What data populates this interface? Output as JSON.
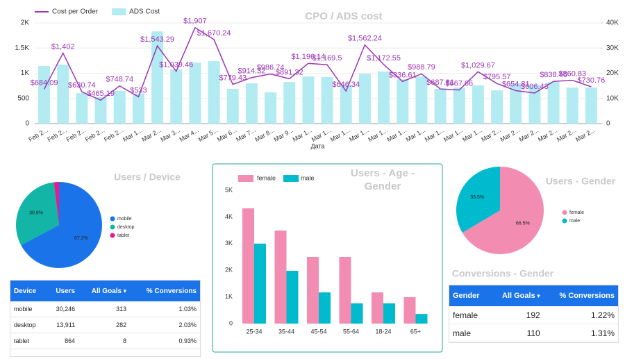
{
  "chart_data": [
    {
      "type": "combo",
      "title": "CPO / ADS cost",
      "x_label": "Дата",
      "grid": true,
      "categories": [
        "Feb 2...",
        "Feb 2...",
        "Feb 2...",
        "Feb 2...",
        "Feb 2...",
        "Mar 1...",
        "Mar 2...",
        "Mar 3...",
        "Mar 4...",
        "Mar 5...",
        "Mar 6...",
        "Mar 7...",
        "Mar 8...",
        "Mar 9...",
        "Mar 1...",
        "Mar 1...",
        "Mar 1...",
        "Mar 1...",
        "Mar 1...",
        "Mar 1...",
        "Mar 1...",
        "Mar 1...",
        "Mar 1...",
        "Mar 1...",
        "Mar 2...",
        "Mar 2...",
        "Mar 2...",
        "Mar 2...",
        "Mar 2...",
        "Mar 2..."
      ],
      "series": [
        {
          "name": "Cost per Order",
          "type": "line",
          "color": "#9c35b5",
          "values": [
            684.09,
            1402,
            630.74,
            465.19,
            748.74,
            533,
            1543.29,
            1039.46,
            1907,
            1670.24,
            779.43,
            914.32,
            986.74,
            891.32,
            1196.14,
            1169.5,
            646.34,
            1562.24,
            1172.55,
            836.61,
            988.79,
            687.81,
            667.66,
            1029.67,
            795.57,
            654.81,
            606.43,
            838.46,
            860.83,
            730.76
          ],
          "value_labels": [
            "$684.09",
            "$1,402",
            "$630.74",
            "$465.19",
            "$748.74",
            "$533",
            "$1,543.29",
            "$1,039.46",
            "$1,907",
            "$1,670.24",
            "$779.43",
            "$914.32",
            "$986.74",
            "$891.32",
            "$1,196.14",
            "$1,169.5",
            "$646.34",
            "$1,562.24",
            "$1,172.55",
            "$836.61",
            "$988.79",
            "$687.81",
            "$667.66",
            "$1,029.67",
            "$795.57",
            "$654.81",
            "$606.43",
            "$838.46",
            "$860.83",
            "$730.76"
          ]
        },
        {
          "name": "ADS Cost",
          "type": "bar",
          "axis": "y2",
          "color": "#b3ebf2",
          "values": [
            22900,
            23400,
            12100,
            10500,
            13000,
            12000,
            36600,
            21500,
            24200,
            24800,
            13800,
            16000,
            12400,
            16500,
            18700,
            18500,
            15400,
            19800,
            20700,
            17600,
            18700,
            13800,
            14300,
            15200,
            13200,
            16000,
            15400,
            16500,
            14300,
            14300
          ]
        }
      ],
      "ylim": [
        0,
        2000
      ],
      "yticks": [
        0,
        500,
        {
          "value": 1000,
          "label": "1K"
        },
        {
          "value": 1500,
          "label": "1.5K"
        },
        {
          "value": 2000,
          "label": "2K"
        }
      ],
      "y2lim": [
        0,
        40000
      ],
      "y2ticks": [
        0,
        {
          "value": 10000,
          "label": "10K"
        },
        {
          "value": 20000,
          "label": "20K"
        },
        {
          "value": 30000,
          "label": "30K"
        },
        {
          "value": 40000,
          "label": "40K"
        }
      ]
    },
    {
      "type": "pie",
      "title": "Users / Device",
      "categories": [
        "mobile",
        "desktop",
        "tablet"
      ],
      "values": [
        67.2,
        30.9,
        1.9
      ],
      "value_labels": [
        "67.2%",
        "30.9%",
        null
      ],
      "colors": [
        "#1a73e8",
        "#12b5a6",
        "#e8198b"
      ]
    },
    {
      "type": "bar",
      "title": "Users - Age - Gender",
      "categories": [
        "25-34",
        "35-44",
        "45-54",
        "55-64",
        "18-24",
        "65+"
      ],
      "series": [
        {
          "name": "female",
          "color": "#f28cb1",
          "values": [
            4320,
            3490,
            2500,
            2500,
            1170,
            990
          ]
        },
        {
          "name": "male",
          "color": "#00bacd",
          "values": [
            3000,
            1980,
            1170,
            760,
            760,
            360
          ]
        }
      ],
      "ylim": [
        0,
        5000
      ],
      "yticks": [
        0,
        {
          "value": 1000,
          "label": "1K"
        },
        {
          "value": 2000,
          "label": "2K"
        },
        {
          "value": 3000,
          "label": "3K"
        },
        {
          "value": 4000,
          "label": "4K"
        },
        {
          "value": 5000,
          "label": "5K"
        }
      ]
    },
    {
      "type": "pie",
      "title": "Users - Gender",
      "categories": [
        "female",
        "male"
      ],
      "values": [
        66.5,
        33.5
      ],
      "value_labels": [
        "66.5%",
        "33.5%"
      ],
      "colors": [
        "#f28cb1",
        "#00bacd"
      ]
    }
  ],
  "device_table": {
    "columns": [
      "Device",
      "Users",
      "All Goals",
      "% Conversions"
    ],
    "rows": [
      [
        "mobile",
        "30,246",
        "313",
        "1.03%"
      ],
      [
        "desktop",
        "13,911",
        "282",
        "2.03%"
      ],
      [
        "tablet",
        "864",
        "8",
        "0.93%"
      ]
    ]
  },
  "gender_table": {
    "title": "Conversions - Gender",
    "columns": [
      "Gender",
      "All Goals",
      "% Conversions"
    ],
    "rows": [
      [
        "female",
        "192",
        "1.22%"
      ],
      [
        "male",
        "110",
        "1.31%"
      ]
    ]
  }
}
